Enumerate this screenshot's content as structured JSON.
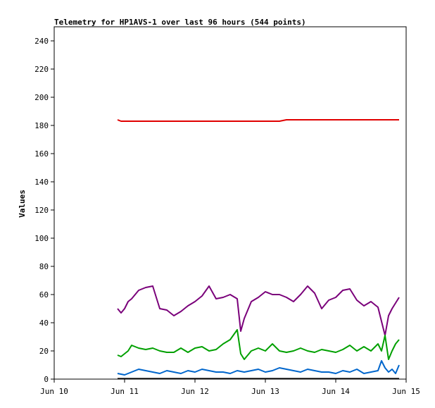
{
  "chart_data": {
    "type": "line",
    "title": "Telemetry for HP1AVS-1 over last 96 hours (544 points)",
    "xlabel": "",
    "ylabel": "Values",
    "xlim": [
      0,
      5
    ],
    "ylim": [
      0,
      250
    ],
    "x_ticks": [
      {
        "x": 0,
        "label": "Jun 10"
      },
      {
        "x": 1,
        "label": "Jun 11"
      },
      {
        "x": 2,
        "label": "Jun 12"
      },
      {
        "x": 3,
        "label": "Jun 13"
      },
      {
        "x": 4,
        "label": "Jun 14"
      },
      {
        "x": 5,
        "label": "Jun 15"
      }
    ],
    "y_ticks": [
      0,
      20,
      40,
      60,
      80,
      100,
      120,
      140,
      160,
      180,
      200,
      220,
      240
    ],
    "grid": false,
    "legend": "none",
    "series": [
      {
        "color": "#e00000",
        "x": [
          0.9,
          0.95,
          1.05,
          1.1,
          1.2,
          1.3,
          1.4,
          1.5,
          1.6,
          1.7,
          1.8,
          1.9,
          2.0,
          2.1,
          2.2,
          2.3,
          2.4,
          2.5,
          2.6,
          2.7,
          2.8,
          2.9,
          3.0,
          3.1,
          3.2,
          3.3,
          3.4,
          3.5,
          3.6,
          3.7,
          3.8,
          3.9,
          4.0,
          4.1,
          4.2,
          4.3,
          4.4,
          4.5,
          4.6,
          4.7,
          4.8,
          4.9
        ],
        "y": [
          184,
          183,
          183,
          183,
          183,
          183,
          183,
          183,
          183,
          183,
          183,
          183,
          183,
          183,
          183,
          183,
          183,
          183,
          183,
          183,
          183,
          183,
          183,
          183,
          183,
          184,
          184,
          184,
          184,
          184,
          184,
          184,
          184,
          184,
          184,
          184,
          184,
          184,
          184,
          184,
          184,
          184
        ]
      },
      {
        "color": "#7a007a",
        "x": [
          0.9,
          0.95,
          1.0,
          1.05,
          1.1,
          1.2,
          1.3,
          1.4,
          1.45,
          1.5,
          1.6,
          1.7,
          1.8,
          1.9,
          2.0,
          2.1,
          2.2,
          2.3,
          2.4,
          2.5,
          2.6,
          2.65,
          2.7,
          2.8,
          2.9,
          3.0,
          3.1,
          3.2,
          3.3,
          3.4,
          3.5,
          3.6,
          3.7,
          3.8,
          3.9,
          4.0,
          4.1,
          4.2,
          4.3,
          4.4,
          4.5,
          4.6,
          4.7,
          4.75,
          4.8,
          4.85,
          4.9
        ],
        "y": [
          50,
          47,
          50,
          55,
          57,
          63,
          65,
          66,
          58,
          50,
          49,
          45,
          48,
          52,
          55,
          59,
          66,
          57,
          58,
          60,
          57,
          34,
          43,
          55,
          58,
          62,
          60,
          60,
          58,
          55,
          60,
          66,
          61,
          50,
          56,
          58,
          63,
          64,
          56,
          52,
          55,
          51,
          31,
          45,
          50,
          54,
          58
        ]
      },
      {
        "color": "#00a000",
        "x": [
          0.9,
          0.95,
          1.0,
          1.05,
          1.1,
          1.2,
          1.3,
          1.4,
          1.5,
          1.6,
          1.7,
          1.8,
          1.9,
          2.0,
          2.1,
          2.2,
          2.3,
          2.4,
          2.5,
          2.6,
          2.65,
          2.7,
          2.8,
          2.9,
          3.0,
          3.1,
          3.2,
          3.3,
          3.4,
          3.5,
          3.6,
          3.7,
          3.8,
          3.9,
          4.0,
          4.1,
          4.2,
          4.3,
          4.4,
          4.5,
          4.6,
          4.65,
          4.7,
          4.75,
          4.8,
          4.85,
          4.9
        ],
        "y": [
          17,
          16,
          18,
          20,
          24,
          22,
          21,
          22,
          20,
          19,
          19,
          22,
          19,
          22,
          23,
          20,
          21,
          25,
          28,
          35,
          18,
          14,
          20,
          22,
          20,
          25,
          20,
          19,
          20,
          22,
          20,
          19,
          21,
          20,
          19,
          21,
          24,
          20,
          23,
          20,
          25,
          20,
          31,
          14,
          20,
          25,
          28
        ]
      },
      {
        "color": "#0066cc",
        "x": [
          0.9,
          1.0,
          1.1,
          1.2,
          1.3,
          1.4,
          1.5,
          1.6,
          1.7,
          1.8,
          1.9,
          2.0,
          2.1,
          2.2,
          2.3,
          2.4,
          2.5,
          2.6,
          2.7,
          2.8,
          2.9,
          3.0,
          3.1,
          3.2,
          3.3,
          3.4,
          3.5,
          3.6,
          3.7,
          3.8,
          3.9,
          4.0,
          4.1,
          4.2,
          4.3,
          4.4,
          4.5,
          4.6,
          4.65,
          4.7,
          4.75,
          4.8,
          4.85,
          4.9
        ],
        "y": [
          4,
          3,
          5,
          7,
          6,
          5,
          4,
          6,
          5,
          4,
          6,
          5,
          7,
          6,
          5,
          5,
          4,
          6,
          5,
          6,
          7,
          5,
          6,
          8,
          7,
          6,
          5,
          7,
          6,
          5,
          5,
          4,
          6,
          5,
          7,
          4,
          5,
          6,
          13,
          8,
          5,
          7,
          4,
          10
        ]
      },
      {
        "color": "#000000",
        "x": [
          0.9,
          4.9
        ],
        "y": [
          0.3,
          0.3
        ]
      }
    ]
  }
}
